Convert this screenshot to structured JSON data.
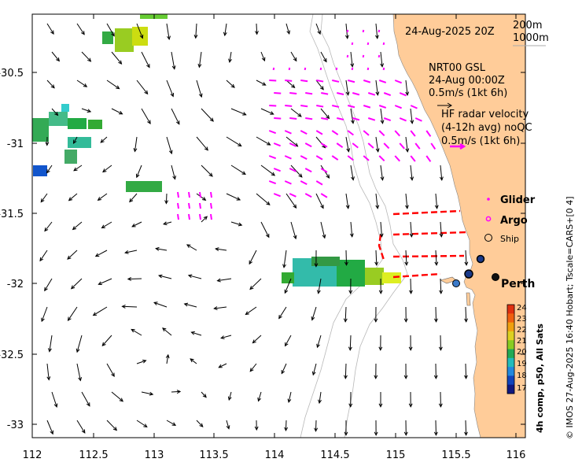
{
  "map": {
    "x_ticks": [
      "112",
      "112.5",
      "113",
      "113.5",
      "114",
      "114.5",
      "115",
      "115.5",
      "116"
    ],
    "y_ticks": [
      "-30.5",
      "-31",
      "-31.5",
      "-32",
      "-32.5",
      "-33"
    ],
    "date_label": "24-Aug-2025 20Z",
    "depth_labels": [
      "200m",
      "1000m"
    ],
    "model": {
      "line1": "NRT00 GSL",
      "line2": "24-Aug 00:00Z",
      "scale": "0.5m/s (1kt 6h)"
    },
    "radar": {
      "line1": "HF radar velocity",
      "line2": "(4-12h avg) noQC",
      "scale": "0.5m/s (1kt 6h)"
    },
    "legend": {
      "glider": "Glider",
      "argo": "Argo",
      "ship": "Ship"
    },
    "place": "Perth",
    "colorbar": {
      "ticks": [
        "24",
        "23",
        "22",
        "21",
        "20",
        "19",
        "18",
        "17"
      ],
      "label": "4h comp, p50, All Sats"
    },
    "credit": "© IMOS 27-Aug-2025 16:40 Hobart; Tscale=CARS+[0 4]",
    "colors": {
      "land": "#ffcc99",
      "model_arrows": "#000000",
      "radar_arrows": "#ff00ff",
      "glider_tracks": "#ff0000",
      "ship_marker": "#1a3a8a"
    }
  }
}
